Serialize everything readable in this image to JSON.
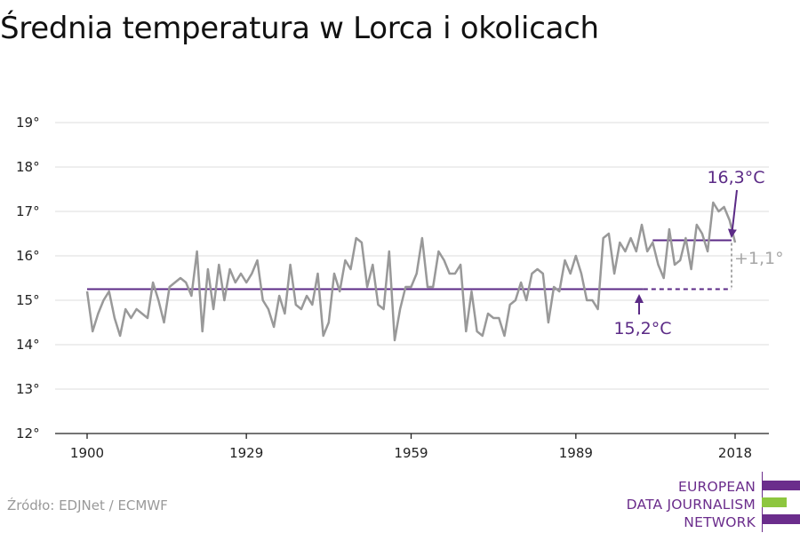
{
  "title": "Średnia temperatura w Lorca i okolicach",
  "source": "Źródło: EDJNet / ECMWF",
  "logo": {
    "lines": [
      "EUROPEAN",
      "DATA JOURNALISM",
      "NETWORK"
    ],
    "colors": {
      "purple": "#6b2d8c",
      "green": "#8dc63f"
    }
  },
  "colors": {
    "series": "#999999",
    "mean": "#5b2a86",
    "delta_label": "#a6a6a6",
    "grid": "#dddddd",
    "axis": "#222222"
  },
  "chart_data": {
    "type": "line",
    "title": "Średnia temperatura w Lorca i okolicach",
    "xlabel": "",
    "ylabel": "",
    "xlim": [
      1900,
      2018
    ],
    "ylim": [
      12,
      19
    ],
    "grid": true,
    "x_ticks": [
      1900,
      1929,
      1959,
      1989,
      2018
    ],
    "x_tick_labels": [
      "1900",
      "1929",
      "1959",
      "1989",
      "2018"
    ],
    "y_ticks": [
      12,
      13,
      14,
      15,
      16,
      17,
      18,
      19
    ],
    "y_tick_labels": [
      "12°",
      "13°",
      "14°",
      "15°",
      "16°",
      "17°",
      "18°",
      "19°"
    ],
    "x": [
      1900,
      1901,
      1902,
      1903,
      1904,
      1905,
      1906,
      1907,
      1908,
      1909,
      1910,
      1911,
      1912,
      1913,
      1914,
      1915,
      1916,
      1917,
      1918,
      1919,
      1920,
      1921,
      1922,
      1923,
      1924,
      1925,
      1926,
      1927,
      1928,
      1929,
      1930,
      1931,
      1932,
      1933,
      1934,
      1935,
      1936,
      1937,
      1938,
      1939,
      1940,
      1941,
      1942,
      1943,
      1944,
      1945,
      1946,
      1947,
      1948,
      1949,
      1950,
      1951,
      1952,
      1953,
      1954,
      1955,
      1956,
      1957,
      1958,
      1959,
      1960,
      1961,
      1962,
      1963,
      1964,
      1965,
      1966,
      1967,
      1968,
      1969,
      1970,
      1971,
      1972,
      1973,
      1974,
      1975,
      1976,
      1977,
      1978,
      1979,
      1980,
      1981,
      1982,
      1983,
      1984,
      1985,
      1986,
      1987,
      1988,
      1989,
      1990,
      1991,
      1992,
      1993,
      1994,
      1995,
      1996,
      1997,
      1998,
      1999,
      2000,
      2001,
      2002,
      2003,
      2004,
      2005,
      2006,
      2007,
      2008,
      2009,
      2010,
      2011,
      2012,
      2013,
      2014,
      2015,
      2016,
      2017,
      2018
    ],
    "series": [
      {
        "values": [
          15.2,
          14.3,
          14.7,
          15.0,
          15.2,
          14.6,
          14.2,
          14.8,
          14.6,
          14.8,
          14.7,
          14.6,
          15.4,
          15.0,
          14.5,
          15.3,
          15.4,
          15.5,
          15.4,
          15.1,
          16.1,
          14.3,
          15.7,
          14.8,
          15.8,
          15.0,
          15.7,
          15.4,
          15.6,
          15.4,
          15.6,
          15.9,
          15.0,
          14.8,
          14.4,
          15.1,
          14.7,
          15.8,
          14.9,
          14.8,
          15.1,
          14.9,
          15.6,
          14.2,
          14.5,
          15.6,
          15.2,
          15.9,
          15.7,
          16.4,
          16.3,
          15.3,
          15.8,
          14.9,
          14.8,
          16.1,
          14.1,
          14.8,
          15.3,
          15.3,
          15.6,
          16.4,
          15.3,
          15.3,
          16.1,
          15.9,
          15.6,
          15.6,
          15.8,
          14.3,
          15.2,
          14.3,
          14.2,
          14.7,
          14.6,
          14.6,
          14.2,
          14.9,
          15.0,
          15.4,
          15.0,
          15.6,
          15.7,
          15.6,
          14.5,
          15.3,
          15.2,
          15.9,
          15.6,
          16.0,
          15.6,
          15.0,
          15.0,
          14.8,
          16.4,
          16.5,
          15.6,
          16.3,
          16.1,
          16.4,
          16.1,
          16.7,
          16.1,
          16.3,
          15.8,
          15.5,
          16.6,
          15.8,
          15.9,
          16.4,
          15.7,
          16.7,
          16.5,
          16.1,
          17.2,
          17.0,
          17.1,
          16.8,
          16.3
        ]
      }
    ],
    "reference_lines": [
      {
        "label": "15,2°C",
        "value": 15.25,
        "from": 1900,
        "to": 2018
      },
      {
        "label": "16,3°C",
        "value": 16.35,
        "from": 2003,
        "to": 2018
      }
    ],
    "annotations": [
      {
        "text": "16,3°C"
      },
      {
        "text": "15,2°C"
      },
      {
        "text": "+1,1°"
      }
    ]
  }
}
